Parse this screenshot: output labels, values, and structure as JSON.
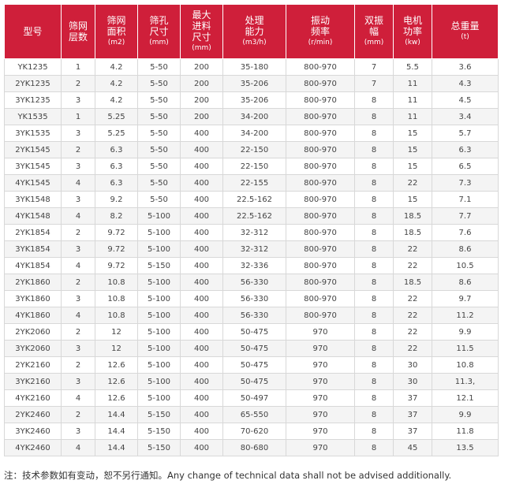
{
  "headers": [
    {
      "label": "型号",
      "unit": ""
    },
    {
      "label": "筛网\n层数",
      "unit": ""
    },
    {
      "label": "筛网\n面积",
      "unit": "(m2)"
    },
    {
      "label": "筛孔\n尺寸",
      "unit": "(mm)"
    },
    {
      "label": "最大\n进料\n尺寸",
      "unit": "(mm)"
    },
    {
      "label": "处理\n能力",
      "unit": "(m3/h)"
    },
    {
      "label": "振动\n频率",
      "unit": "(r/min)"
    },
    {
      "label": "双振\n幅",
      "unit": "(mm)"
    },
    {
      "label": "电机\n功率",
      "unit": "(kw)"
    },
    {
      "label": "总重量",
      "unit": "(t)"
    }
  ],
  "rows": [
    [
      "YK1235",
      "1",
      "4.2",
      "5-50",
      "200",
      "35-180",
      "800-970",
      "7",
      "5.5",
      "3.6"
    ],
    [
      "2YK1235",
      "2",
      "4.2",
      "5-50",
      "200",
      "35-206",
      "800-970",
      "7",
      "11",
      "4.3"
    ],
    [
      "3YK1235",
      "3",
      "4.2",
      "5-50",
      "200",
      "35-206",
      "800-970",
      "8",
      "11",
      "4.5"
    ],
    [
      "YK1535",
      "1",
      "5.25",
      "5-50",
      "200",
      "34-200",
      "800-970",
      "8",
      "11",
      "3.4"
    ],
    [
      "3YK1535",
      "3",
      "5.25",
      "5-50",
      "400",
      "34-200",
      "800-970",
      "8",
      "15",
      "5.7"
    ],
    [
      "2YK1545",
      "2",
      "6.3",
      "5-50",
      "400",
      "22-150",
      "800-970",
      "8",
      "15",
      "6.3"
    ],
    [
      "3YK1545",
      "3",
      "6.3",
      "5-50",
      "400",
      "22-150",
      "800-970",
      "8",
      "15",
      "6.5"
    ],
    [
      "4YK1545",
      "4",
      "6.3",
      "5-50",
      "400",
      "22-155",
      "800-970",
      "8",
      "22",
      "7.3"
    ],
    [
      "3YK1548",
      "3",
      "9.2",
      "5-50",
      "400",
      "22.5-162",
      "800-970",
      "8",
      "15",
      "7.1"
    ],
    [
      "4YK1548",
      "4",
      "8.2",
      "5-100",
      "400",
      "22.5-162",
      "800-970",
      "8",
      "18.5",
      "7.7"
    ],
    [
      "2YK1854",
      "2",
      "9.72",
      "5-100",
      "400",
      "32-312",
      "800-970",
      "8",
      "18.5",
      "7.6"
    ],
    [
      "3YK1854",
      "3",
      "9.72",
      "5-100",
      "400",
      "32-312",
      "800-970",
      "8",
      "22",
      "8.6"
    ],
    [
      "4YK1854",
      "4",
      "9.72",
      "5-150",
      "400",
      "32-336",
      "800-970",
      "8",
      "22",
      "10.5"
    ],
    [
      "2YK1860",
      "2",
      "10.8",
      "5-100",
      "400",
      "56-330",
      "800-970",
      "8",
      "18.5",
      "8.6"
    ],
    [
      "3YK1860",
      "3",
      "10.8",
      "5-100",
      "400",
      "56-330",
      "800-970",
      "8",
      "22",
      "9.7"
    ],
    [
      "4YK1860",
      "4",
      "10.8",
      "5-100",
      "400",
      "56-330",
      "800-970",
      "8",
      "22",
      "11.2"
    ],
    [
      "2YK2060",
      "2",
      "12",
      "5-100",
      "400",
      "50-475",
      "970",
      "8",
      "22",
      "9.9"
    ],
    [
      "3YK2060",
      "3",
      "12",
      "5-100",
      "400",
      "50-475",
      "970",
      "8",
      "22",
      "11.5"
    ],
    [
      "2YK2160",
      "2",
      "12.6",
      "5-100",
      "400",
      "50-475",
      "970",
      "8",
      "30",
      "10.8"
    ],
    [
      "3YK2160",
      "3",
      "12.6",
      "5-100",
      "400",
      "50-475",
      "970",
      "8",
      "30",
      "11.3,"
    ],
    [
      "4YK2160",
      "4",
      "12.6",
      "5-100",
      "400",
      "50-497",
      "970",
      "8",
      "37",
      "12.1"
    ],
    [
      "2YK2460",
      "2",
      "14.4",
      "5-150",
      "400",
      "65-550",
      "970",
      "8",
      "37",
      "9.9"
    ],
    [
      "3YK2460",
      "3",
      "14.4",
      "5-150",
      "400",
      "70-620",
      "970",
      "8",
      "37",
      "11.8"
    ],
    [
      "4YK2460",
      "4",
      "14.4",
      "5-150",
      "400",
      "80-680",
      "970",
      "8",
      "45",
      "13.5"
    ]
  ],
  "note": "注：技术参数如有变动，恕不另行通知。Any change of technical data shall not be advised additionally.",
  "colors": {
    "header_bg": "#cf1f3a",
    "header_text": "#ffffff",
    "row_alt": "#f4f4f4"
  }
}
